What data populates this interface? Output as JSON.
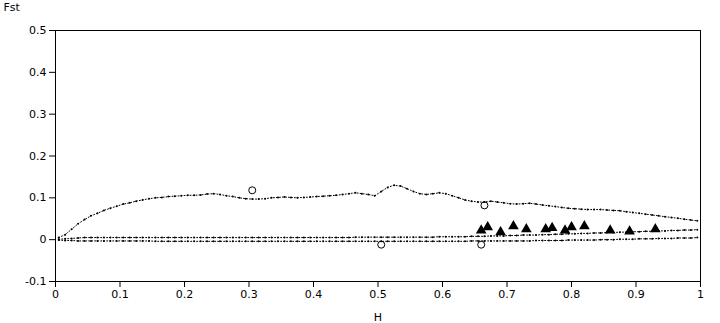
{
  "chart_data": {
    "type": "scatter",
    "xlabel": "H",
    "ylabel": "Fst",
    "xlim": [
      0,
      1
    ],
    "ylim": [
      -0.1,
      0.5
    ],
    "xticks": [
      0,
      0.1,
      0.2,
      0.3,
      0.4,
      0.5,
      0.6,
      0.7,
      0.8,
      0.9,
      1
    ],
    "yticks": [
      -0.1,
      0,
      0.1,
      0.2,
      0.3,
      0.4,
      0.5
    ],
    "grid": false,
    "series": [
      {
        "type": "line",
        "line_style": "dotted",
        "marker": "point",
        "color": "#000000",
        "x": [
          0.005,
          0.015,
          0.025,
          0.035,
          0.045,
          0.055,
          0.065,
          0.075,
          0.085,
          0.095,
          0.105,
          0.115,
          0.125,
          0.135,
          0.145,
          0.155,
          0.165,
          0.175,
          0.185,
          0.195,
          0.205,
          0.215,
          0.225,
          0.235,
          0.245,
          0.255,
          0.265,
          0.275,
          0.285,
          0.295,
          0.305,
          0.315,
          0.325,
          0.335,
          0.345,
          0.355,
          0.365,
          0.375,
          0.385,
          0.395,
          0.405,
          0.415,
          0.425,
          0.435,
          0.445,
          0.455,
          0.465,
          0.475,
          0.485,
          0.495,
          0.505,
          0.515,
          0.525,
          0.535,
          0.545,
          0.555,
          0.565,
          0.575,
          0.585,
          0.595,
          0.605,
          0.615,
          0.625,
          0.635,
          0.645,
          0.655,
          0.665,
          0.675,
          0.685,
          0.695,
          0.705,
          0.715,
          0.725,
          0.735,
          0.745,
          0.755,
          0.765,
          0.775,
          0.785,
          0.795,
          0.805,
          0.815,
          0.825,
          0.835,
          0.845,
          0.855,
          0.865,
          0.875,
          0.885,
          0.895,
          0.905,
          0.915,
          0.925,
          0.935,
          0.945,
          0.955,
          0.965,
          0.975,
          0.985,
          0.995
        ],
        "values": [
          0.005,
          0.012,
          0.025,
          0.038,
          0.048,
          0.057,
          0.063,
          0.07,
          0.075,
          0.08,
          0.085,
          0.088,
          0.092,
          0.095,
          0.098,
          0.1,
          0.101,
          0.103,
          0.104,
          0.105,
          0.106,
          0.106,
          0.107,
          0.109,
          0.11,
          0.108,
          0.105,
          0.103,
          0.1,
          0.098,
          0.097,
          0.097,
          0.098,
          0.1,
          0.101,
          0.102,
          0.101,
          0.1,
          0.101,
          0.102,
          0.103,
          0.104,
          0.105,
          0.106,
          0.108,
          0.11,
          0.112,
          0.11,
          0.108,
          0.105,
          0.115,
          0.125,
          0.13,
          0.128,
          0.122,
          0.115,
          0.11,
          0.108,
          0.11,
          0.112,
          0.11,
          0.105,
          0.1,
          0.095,
          0.092,
          0.09,
          0.09,
          0.092,
          0.09,
          0.088,
          0.086,
          0.085,
          0.086,
          0.087,
          0.085,
          0.083,
          0.081,
          0.079,
          0.077,
          0.075,
          0.074,
          0.073,
          0.072,
          0.072,
          0.072,
          0.071,
          0.07,
          0.069,
          0.067,
          0.065,
          0.063,
          0.061,
          0.059,
          0.057,
          0.055,
          0.053,
          0.051,
          0.049,
          0.047,
          0.045
        ]
      },
      {
        "type": "line",
        "line_style": "dotted",
        "marker": "point",
        "color": "#000000",
        "x": [
          0.005,
          0.015,
          0.025,
          0.035,
          0.045,
          0.055,
          0.065,
          0.075,
          0.085,
          0.095,
          0.105,
          0.115,
          0.125,
          0.135,
          0.145,
          0.155,
          0.165,
          0.175,
          0.185,
          0.195,
          0.205,
          0.215,
          0.225,
          0.235,
          0.245,
          0.255,
          0.265,
          0.275,
          0.285,
          0.295,
          0.305,
          0.315,
          0.325,
          0.335,
          0.345,
          0.355,
          0.365,
          0.375,
          0.385,
          0.395,
          0.405,
          0.415,
          0.425,
          0.435,
          0.445,
          0.455,
          0.465,
          0.475,
          0.485,
          0.495,
          0.505,
          0.515,
          0.525,
          0.535,
          0.545,
          0.555,
          0.565,
          0.575,
          0.585,
          0.595,
          0.605,
          0.615,
          0.625,
          0.635,
          0.645,
          0.655,
          0.665,
          0.675,
          0.685,
          0.695,
          0.705,
          0.715,
          0.725,
          0.735,
          0.745,
          0.755,
          0.765,
          0.775,
          0.785,
          0.795,
          0.805,
          0.815,
          0.825,
          0.835,
          0.845,
          0.855,
          0.865,
          0.875,
          0.885,
          0.895,
          0.905,
          0.915,
          0.925,
          0.935,
          0.945,
          0.955,
          0.965,
          0.975,
          0.985,
          0.995
        ],
        "values": [
          0.001,
          0.002,
          0.003,
          0.004,
          0.005,
          0.005,
          0.005,
          0.005,
          0.005,
          0.005,
          0.005,
          0.005,
          0.005,
          0.005,
          0.005,
          0.005,
          0.005,
          0.005,
          0.005,
          0.005,
          0.005,
          0.005,
          0.005,
          0.005,
          0.005,
          0.005,
          0.005,
          0.005,
          0.005,
          0.005,
          0.005,
          0.005,
          0.005,
          0.005,
          0.005,
          0.005,
          0.005,
          0.005,
          0.005,
          0.005,
          0.005,
          0.005,
          0.005,
          0.005,
          0.005,
          0.005,
          0.006,
          0.006,
          0.006,
          0.006,
          0.006,
          0.006,
          0.006,
          0.006,
          0.006,
          0.006,
          0.006,
          0.006,
          0.006,
          0.007,
          0.007,
          0.007,
          0.007,
          0.007,
          0.008,
          0.008,
          0.008,
          0.009,
          0.009,
          0.009,
          0.01,
          0.01,
          0.011,
          0.011,
          0.011,
          0.012,
          0.012,
          0.013,
          0.013,
          0.014,
          0.014,
          0.015,
          0.015,
          0.016,
          0.016,
          0.017,
          0.017,
          0.018,
          0.018,
          0.019,
          0.019,
          0.02,
          0.02,
          0.021,
          0.021,
          0.022,
          0.022,
          0.023,
          0.023,
          0.024
        ]
      },
      {
        "type": "line",
        "line_style": "dotted",
        "marker": "point",
        "color": "#000000",
        "x": [
          0.005,
          0.015,
          0.025,
          0.035,
          0.045,
          0.055,
          0.065,
          0.075,
          0.085,
          0.095,
          0.105,
          0.115,
          0.125,
          0.135,
          0.145,
          0.155,
          0.165,
          0.175,
          0.185,
          0.195,
          0.205,
          0.215,
          0.225,
          0.235,
          0.245,
          0.255,
          0.265,
          0.275,
          0.285,
          0.295,
          0.305,
          0.315,
          0.325,
          0.335,
          0.345,
          0.355,
          0.365,
          0.375,
          0.385,
          0.395,
          0.405,
          0.415,
          0.425,
          0.435,
          0.445,
          0.455,
          0.465,
          0.475,
          0.485,
          0.495,
          0.505,
          0.515,
          0.525,
          0.535,
          0.545,
          0.555,
          0.565,
          0.575,
          0.585,
          0.595,
          0.605,
          0.615,
          0.625,
          0.635,
          0.645,
          0.655,
          0.665,
          0.675,
          0.685,
          0.695,
          0.705,
          0.715,
          0.725,
          0.735,
          0.745,
          0.755,
          0.765,
          0.775,
          0.785,
          0.795,
          0.805,
          0.815,
          0.825,
          0.835,
          0.845,
          0.855,
          0.865,
          0.875,
          0.885,
          0.895,
          0.905,
          0.915,
          0.925,
          0.935,
          0.945,
          0.955,
          0.965,
          0.975,
          0.985,
          0.995
        ],
        "values": [
          -0.001,
          -0.002,
          -0.002,
          -0.003,
          -0.003,
          -0.003,
          -0.003,
          -0.003,
          -0.003,
          -0.003,
          -0.003,
          -0.003,
          -0.003,
          -0.003,
          -0.003,
          -0.004,
          -0.004,
          -0.004,
          -0.004,
          -0.004,
          -0.004,
          -0.004,
          -0.004,
          -0.004,
          -0.004,
          -0.004,
          -0.004,
          -0.004,
          -0.004,
          -0.004,
          -0.004,
          -0.004,
          -0.004,
          -0.004,
          -0.004,
          -0.004,
          -0.004,
          -0.004,
          -0.004,
          -0.004,
          -0.004,
          -0.004,
          -0.004,
          -0.004,
          -0.004,
          -0.004,
          -0.004,
          -0.004,
          -0.004,
          -0.004,
          -0.004,
          -0.004,
          -0.004,
          -0.004,
          -0.004,
          -0.004,
          -0.004,
          -0.004,
          -0.004,
          -0.004,
          -0.004,
          -0.004,
          -0.004,
          -0.004,
          -0.003,
          -0.003,
          -0.003,
          -0.003,
          -0.003,
          -0.003,
          -0.003,
          -0.003,
          -0.003,
          -0.003,
          -0.002,
          -0.002,
          -0.002,
          -0.002,
          -0.002,
          -0.001,
          -0.001,
          -0.001,
          -0.001,
          -0.001,
          0.0,
          0.0,
          0.0,
          0.001,
          0.001,
          0.001,
          0.002,
          0.002,
          0.002,
          0.003,
          0.003,
          0.003,
          0.004,
          0.004,
          0.004,
          0.005
        ]
      },
      {
        "type": "scatter",
        "marker": "open_circle",
        "color": "#000000",
        "x": [
          0.305,
          0.505,
          0.665,
          0.66
        ],
        "values": [
          0.118,
          -0.012,
          0.082,
          -0.012
        ]
      },
      {
        "type": "scatter",
        "marker": "triangle",
        "color": "#000000",
        "x": [
          0.66,
          0.67,
          0.69,
          0.71,
          0.73,
          0.76,
          0.77,
          0.79,
          0.8,
          0.82,
          0.86,
          0.89,
          0.93
        ],
        "values": [
          0.022,
          0.03,
          0.018,
          0.032,
          0.025,
          0.025,
          0.028,
          0.022,
          0.03,
          0.032,
          0.022,
          0.02,
          0.025
        ]
      }
    ]
  }
}
